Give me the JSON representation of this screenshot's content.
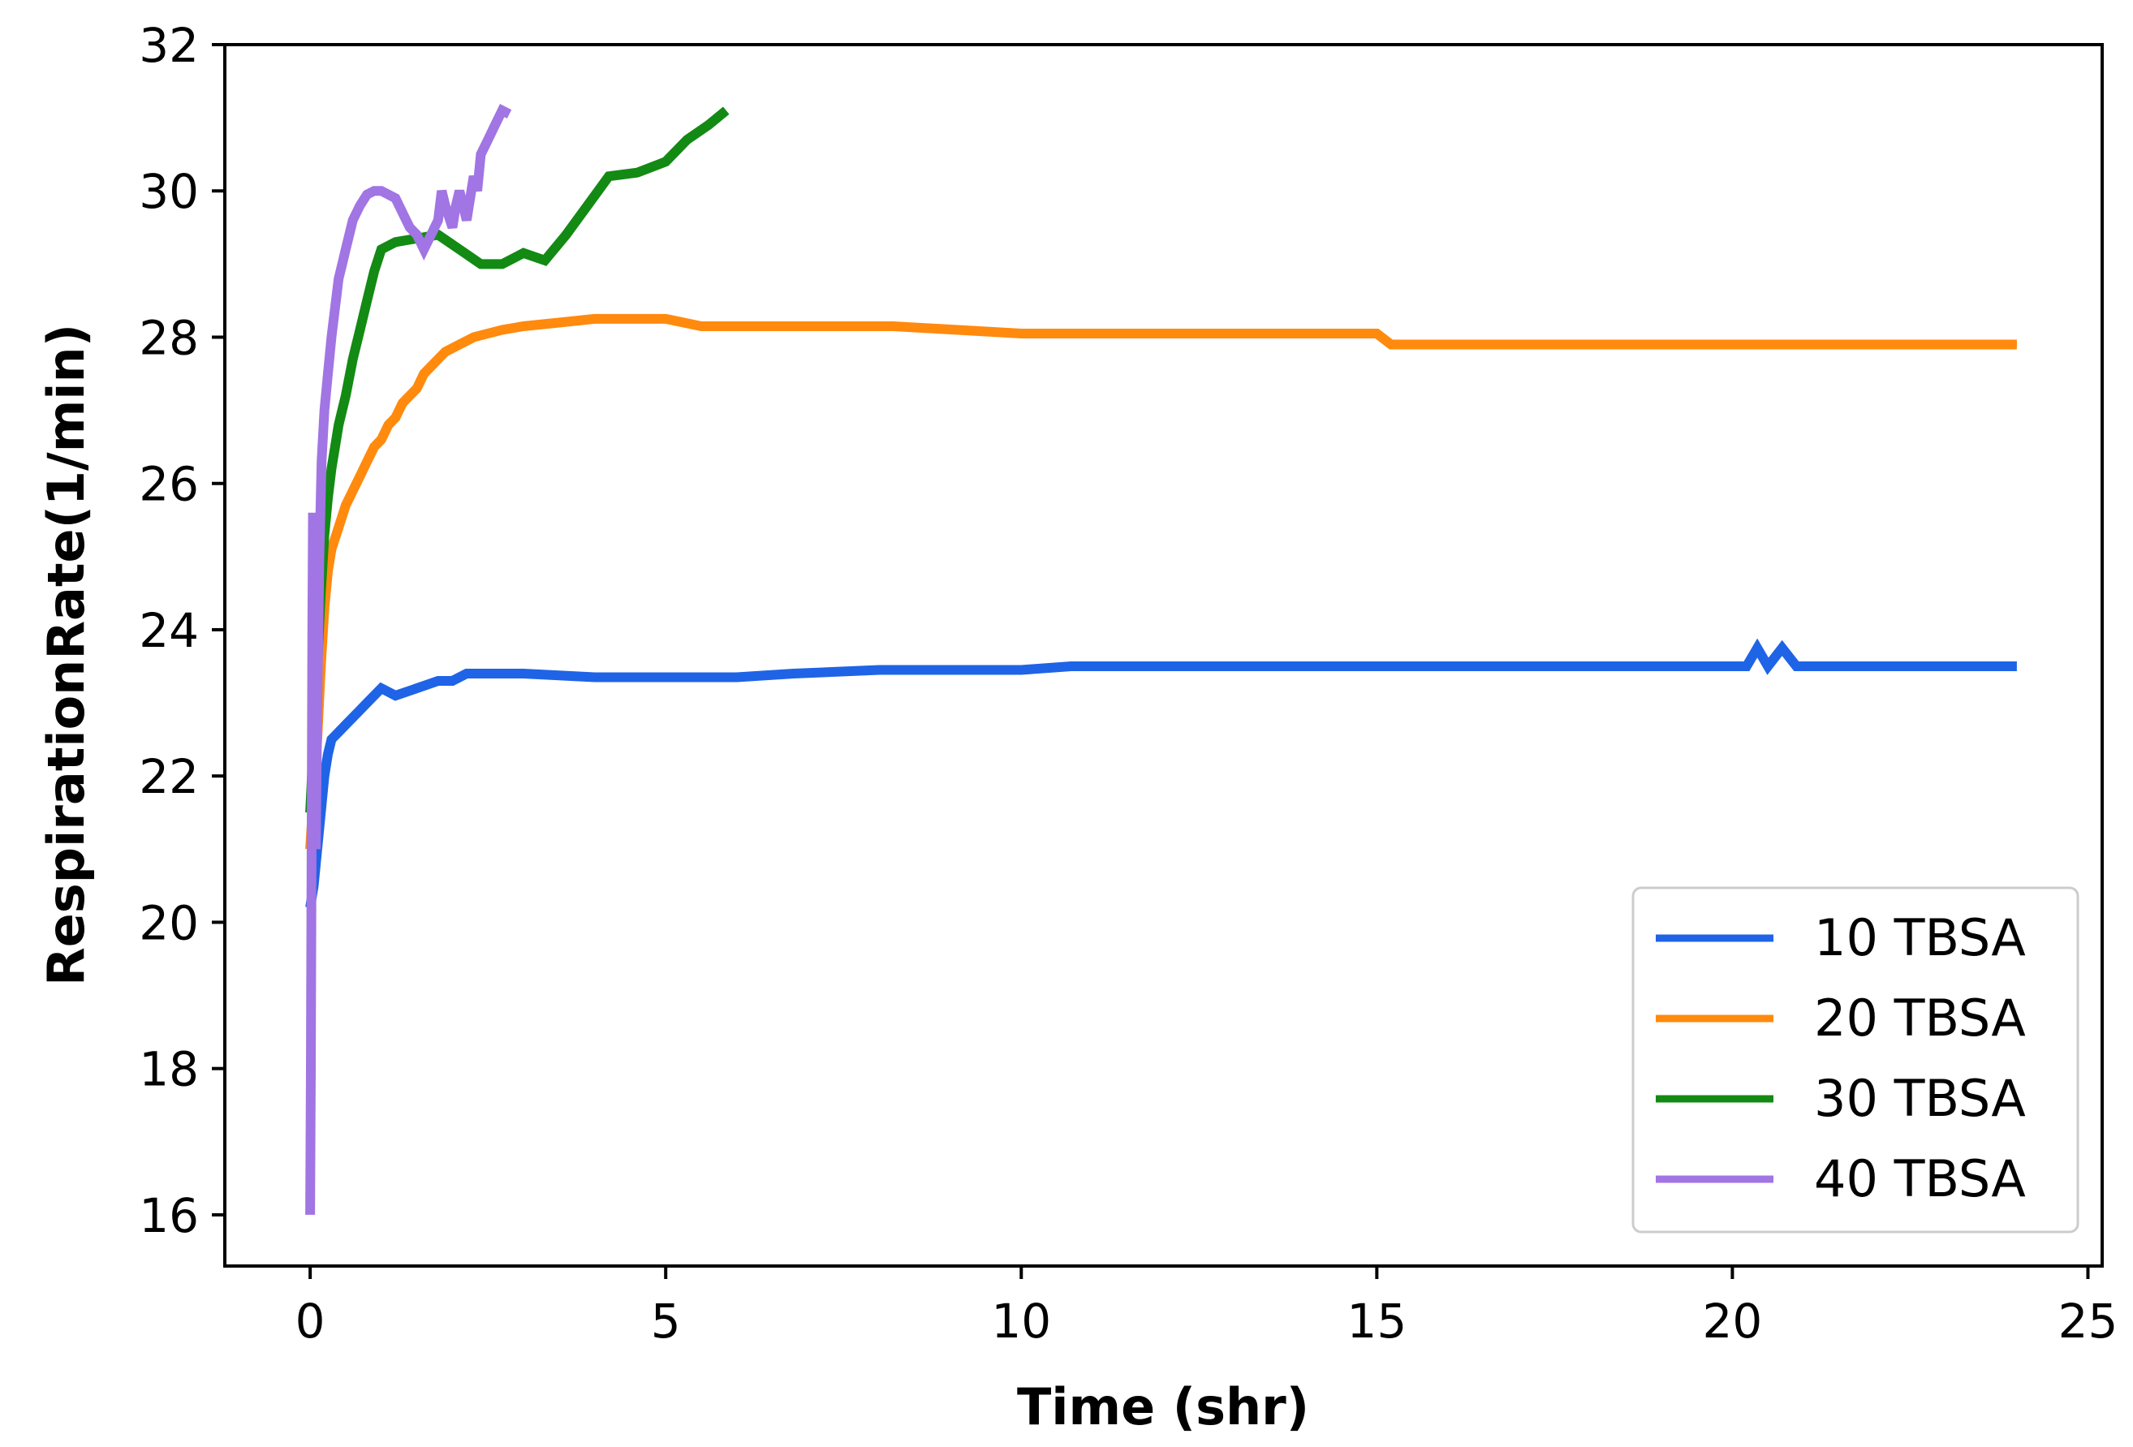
{
  "chart_data": {
    "type": "line",
    "title": "",
    "xlabel": "Time (shr)",
    "ylabel": "RespirationRate(1/min)",
    "xlim": [
      -1.2,
      25.2
    ],
    "ylim": [
      15.3,
      32.0
    ],
    "xticks": [
      0,
      5,
      10,
      15,
      20,
      25
    ],
    "yticks": [
      16,
      18,
      20,
      22,
      24,
      26,
      28,
      30,
      32
    ],
    "grid": false,
    "legend_position": "lower-right",
    "series": [
      {
        "name": "10 TBSA",
        "color": "#1f64e6",
        "x": [
          0,
          0.05,
          0.1,
          0.15,
          0.2,
          0.25,
          0.3,
          0.4,
          0.5,
          0.6,
          0.7,
          0.8,
          0.9,
          1.0,
          1.2,
          1.5,
          1.8,
          2.0,
          2.2,
          3.0,
          4.0,
          5.0,
          6.0,
          6.8,
          8.0,
          10.0,
          10.7,
          12.0,
          15.0,
          18.0,
          20.2,
          20.35,
          20.5,
          20.7,
          20.9,
          22.0,
          24.0
        ],
        "y": [
          20.2,
          20.5,
          21.0,
          21.5,
          22.0,
          22.3,
          22.5,
          22.6,
          22.7,
          22.8,
          22.9,
          23.0,
          23.1,
          23.2,
          23.1,
          23.2,
          23.3,
          23.3,
          23.4,
          23.4,
          23.35,
          23.35,
          23.35,
          23.4,
          23.45,
          23.45,
          23.5,
          23.5,
          23.5,
          23.5,
          23.5,
          23.75,
          23.5,
          23.75,
          23.5,
          23.5,
          23.5
        ]
      },
      {
        "name": "20 TBSA",
        "color": "#ff8a0d",
        "x": [
          0,
          0.05,
          0.1,
          0.15,
          0.2,
          0.25,
          0.3,
          0.4,
          0.5,
          0.6,
          0.7,
          0.8,
          0.9,
          1.0,
          1.1,
          1.2,
          1.3,
          1.4,
          1.5,
          1.6,
          1.7,
          1.8,
          1.9,
          2.0,
          2.3,
          2.7,
          3.0,
          3.5,
          4.0,
          5.0,
          5.5,
          6.5,
          8.2,
          10.0,
          12.0,
          15.0,
          15.2,
          18.0,
          22.0,
          24.0
        ],
        "y": [
          21.0,
          21.8,
          22.5,
          23.5,
          24.3,
          24.8,
          25.1,
          25.4,
          25.7,
          25.9,
          26.1,
          26.3,
          26.5,
          26.6,
          26.8,
          26.9,
          27.1,
          27.2,
          27.3,
          27.5,
          27.6,
          27.7,
          27.8,
          27.85,
          28.0,
          28.1,
          28.15,
          28.2,
          28.25,
          28.25,
          28.15,
          28.15,
          28.15,
          28.05,
          28.05,
          28.05,
          27.9,
          27.9,
          27.9,
          27.9
        ]
      },
      {
        "name": "30 TBSA",
        "color": "#138a13",
        "x": [
          0,
          0.05,
          0.1,
          0.15,
          0.2,
          0.25,
          0.3,
          0.35,
          0.4,
          0.5,
          0.6,
          0.7,
          0.8,
          0.9,
          1.0,
          1.2,
          1.5,
          1.8,
          2.1,
          2.4,
          2.7,
          3.0,
          3.3,
          3.6,
          3.9,
          4.2,
          4.6,
          5.0,
          5.3,
          5.6,
          5.85
        ],
        "y": [
          21.5,
          22.5,
          23.5,
          24.5,
          25.3,
          25.8,
          26.2,
          26.5,
          26.8,
          27.2,
          27.7,
          28.1,
          28.5,
          28.9,
          29.2,
          29.3,
          29.35,
          29.4,
          29.2,
          29.0,
          29.0,
          29.15,
          29.05,
          29.4,
          29.8,
          30.2,
          30.25,
          30.4,
          30.7,
          30.9,
          31.1
        ]
      },
      {
        "name": "40 TBSA",
        "color": "#a175e3",
        "x": [
          0,
          0.01,
          0.02,
          0.03,
          0.04,
          0.05,
          0.06,
          0.08,
          0.1,
          0.13,
          0.16,
          0.2,
          0.25,
          0.3,
          0.35,
          0.4,
          0.45,
          0.5,
          0.55,
          0.6,
          0.7,
          0.8,
          0.9,
          1.0,
          1.1,
          1.2,
          1.3,
          1.4,
          1.5,
          1.6,
          1.7,
          1.8,
          1.85,
          1.9,
          2.0,
          2.05,
          2.1,
          2.2,
          2.3,
          2.35,
          2.4,
          2.5,
          2.6,
          2.7,
          2.8
        ],
        "y": [
          16.0,
          18.0,
          21.0,
          24.0,
          25.6,
          24.0,
          22.0,
          21.0,
          23.0,
          25.0,
          26.3,
          27.0,
          27.5,
          28.0,
          28.4,
          28.8,
          29.0,
          29.2,
          29.4,
          29.6,
          29.8,
          29.95,
          30.0,
          30.0,
          29.95,
          29.9,
          29.7,
          29.5,
          29.4,
          29.2,
          29.4,
          29.6,
          30.0,
          29.8,
          29.5,
          29.8,
          30.0,
          29.6,
          30.2,
          30.0,
          30.5,
          30.7,
          30.9,
          31.1,
          31.05
        ]
      }
    ]
  }
}
